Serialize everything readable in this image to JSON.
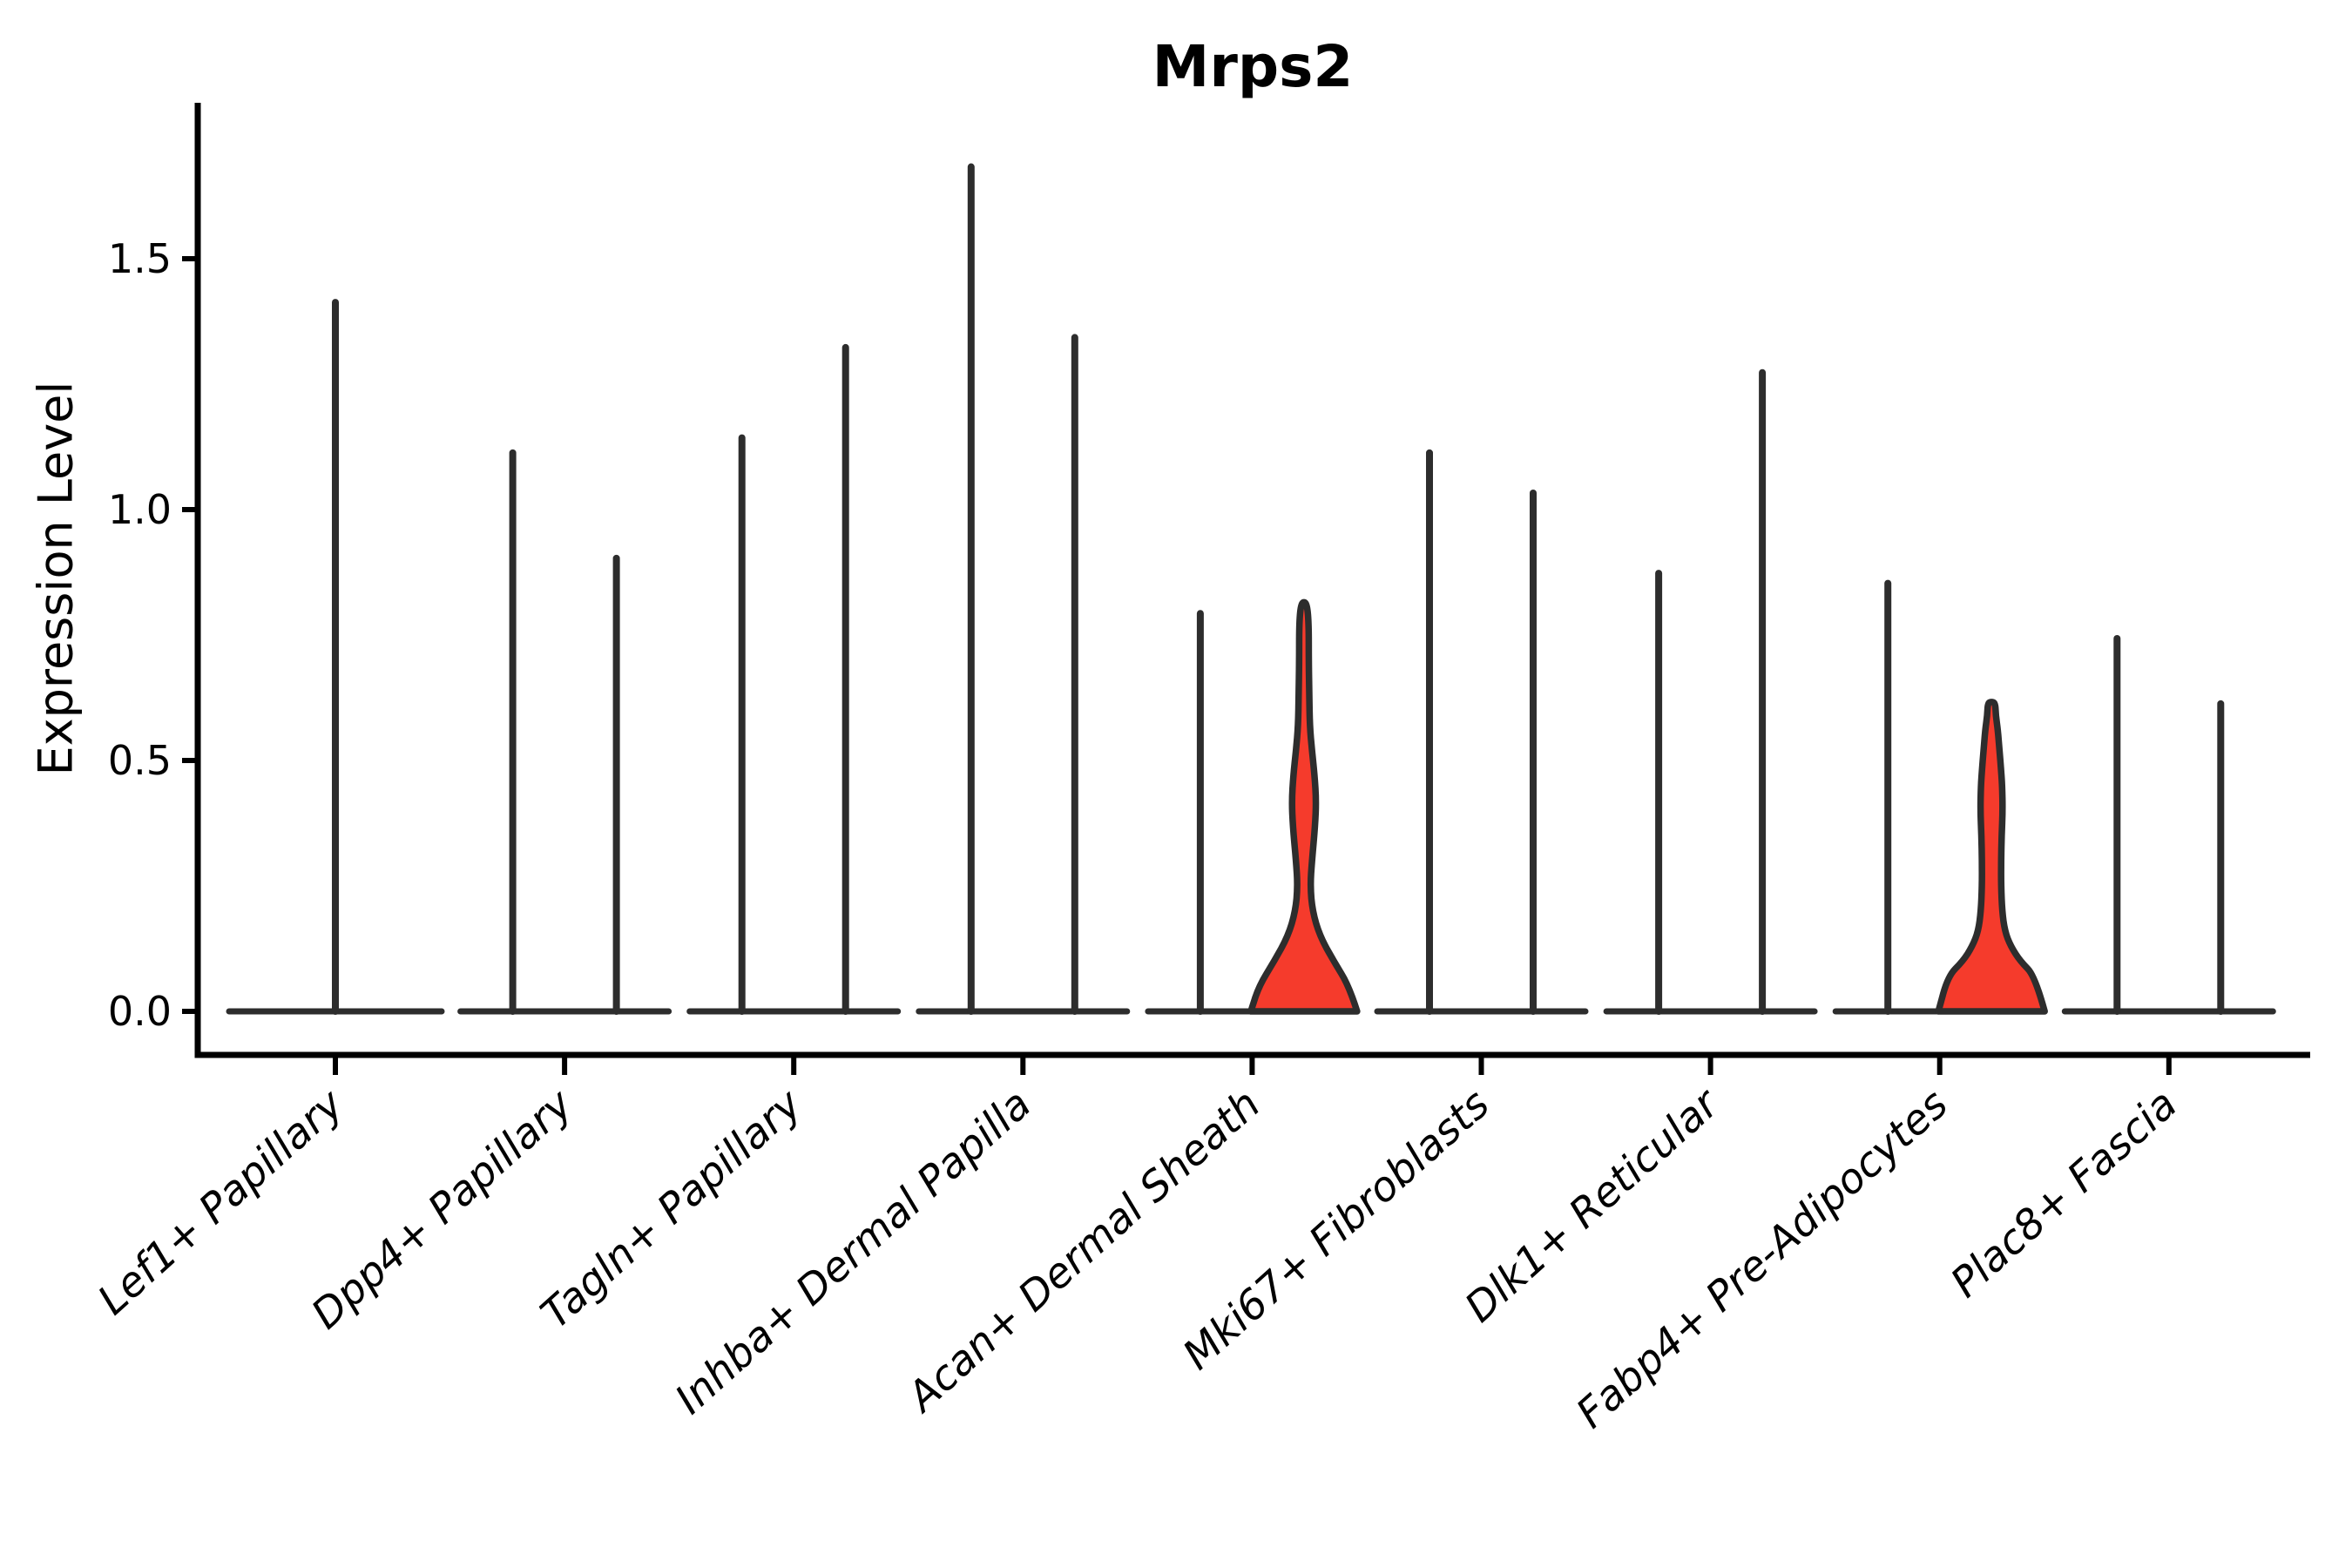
{
  "figure": {
    "title": "Mrps2",
    "ylabel": "Expression Level"
  },
  "chart_data": {
    "type": "violin",
    "title": "Mrps2",
    "xlabel": "",
    "ylabel": "Expression Level",
    "grid": false,
    "legend": null,
    "ylim": [
      -0.085,
      1.81
    ],
    "ytick_labels": [
      "0.0",
      "0.5",
      "1.0",
      "1.5"
    ],
    "ytick_values": [
      0.0,
      0.5,
      1.0,
      1.5
    ],
    "categories": [
      "Lef1+ Papillary",
      "Dpp4+ Papillary",
      "Tagln+ Papillary",
      "Inhba+ Dermal Papilla",
      "Acan+ Dermal Sheath",
      "Mki67+ Fibroblasts",
      "Dlk1+ Reticular",
      "Fabp4+ Pre-Adipocytes",
      "Plac8+ Fascia"
    ],
    "groups": [
      {
        "category": "Lef1+ Papillary",
        "violins": [
          {
            "max_expression": 1.42,
            "highlight": false,
            "wide": true
          }
        ]
      },
      {
        "category": "Dpp4+ Papillary",
        "violins": [
          {
            "max_expression": 1.12,
            "highlight": false
          },
          {
            "max_expression": 0.91,
            "highlight": false
          }
        ]
      },
      {
        "category": "Tagln+ Papillary",
        "violins": [
          {
            "max_expression": 1.15,
            "highlight": false
          },
          {
            "max_expression": 1.33,
            "highlight": false
          }
        ]
      },
      {
        "category": "Inhba+ Dermal Papilla",
        "violins": [
          {
            "max_expression": 1.69,
            "highlight": false
          },
          {
            "max_expression": 1.35,
            "highlight": false
          }
        ]
      },
      {
        "category": "Acan+ Dermal Sheath",
        "violins": [
          {
            "max_expression": 0.8,
            "highlight": false
          },
          {
            "max_expression": 0.81,
            "highlight": true,
            "profile": [
              [
                0.0,
                1.0
              ],
              [
                0.05,
                0.85
              ],
              [
                0.1,
                0.56
              ],
              [
                0.15,
                0.3
              ],
              [
                0.2,
                0.16
              ],
              [
                0.25,
                0.12
              ],
              [
                0.3,
                0.15
              ],
              [
                0.37,
                0.21
              ],
              [
                0.42,
                0.23
              ],
              [
                0.47,
                0.2
              ],
              [
                0.52,
                0.15
              ],
              [
                0.57,
                0.11
              ],
              [
                0.63,
                0.1
              ],
              [
                0.7,
                0.09
              ],
              [
                0.77,
                0.09
              ],
              [
                0.81,
                0.06
              ]
            ]
          }
        ]
      },
      {
        "category": "Mki67+ Fibroblasts",
        "violins": [
          {
            "max_expression": 1.12,
            "highlight": false
          },
          {
            "max_expression": 1.04,
            "highlight": false
          }
        ]
      },
      {
        "category": "Dlk1+ Reticular",
        "violins": [
          {
            "max_expression": 0.88,
            "highlight": false
          },
          {
            "max_expression": 1.28,
            "highlight": false
          }
        ]
      },
      {
        "category": "Fabp4+ Pre-Adipocytes",
        "violins": [
          {
            "max_expression": 0.86,
            "highlight": false
          },
          {
            "max_expression": 0.61,
            "highlight": true,
            "profile": [
              [
                0.0,
                1.0
              ],
              [
                0.07,
                0.82
              ],
              [
                0.1,
                0.54
              ],
              [
                0.13,
                0.36
              ],
              [
                0.16,
                0.25
              ],
              [
                0.2,
                0.2
              ],
              [
                0.25,
                0.18
              ],
              [
                0.3,
                0.18
              ],
              [
                0.35,
                0.19
              ],
              [
                0.4,
                0.21
              ],
              [
                0.45,
                0.2
              ],
              [
                0.48,
                0.18
              ],
              [
                0.52,
                0.15
              ],
              [
                0.56,
                0.12
              ],
              [
                0.59,
                0.08
              ],
              [
                0.615,
                0.07
              ]
            ]
          }
        ]
      },
      {
        "category": "Plac8+ Fascia",
        "violins": [
          {
            "max_expression": 0.75,
            "highlight": false
          },
          {
            "max_expression": 0.62,
            "highlight": false
          }
        ]
      }
    ],
    "colors": {
      "highlight_fill": "#f53b2c",
      "violin_stroke": "#2d2d2d",
      "axis_color": "#000000",
      "text_color": "#000000",
      "background": "#ffffff"
    }
  }
}
